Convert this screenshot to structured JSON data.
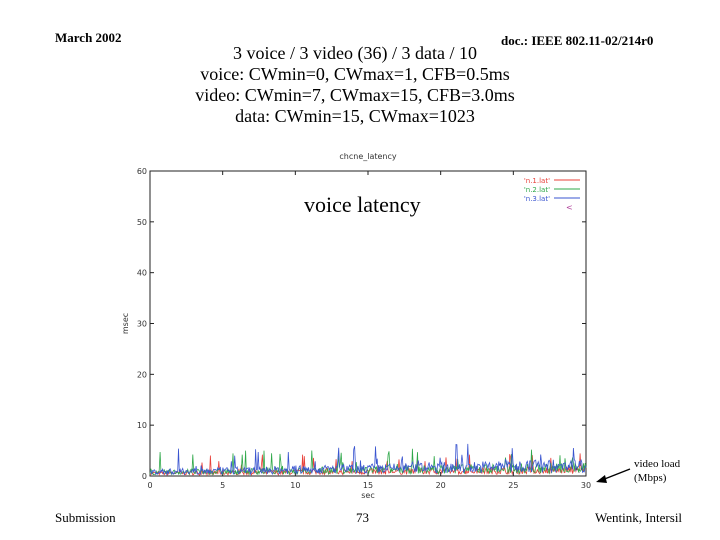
{
  "header": {
    "date": "March 2002",
    "doc": "doc.: IEEE 802.11-02/214r0"
  },
  "title_lines": [
    "3 voice / 3 video (36) / 3 data / 10",
    "voice: CWmin=0, CWmax=1, CFB=0.5ms",
    "video: CWmin=7, CWmax=15, CFB=3.0ms",
    "data: CWmin=15, CWmax=1023"
  ],
  "footer": {
    "left": "Submission",
    "center": "73",
    "right": "Wentink, Intersil"
  },
  "annotations": {
    "chart_label": "voice latency",
    "video_load_line1": "video load",
    "video_load_line2": "(Mbps)"
  },
  "chart_data": {
    "type": "line",
    "title": "chcne_latency",
    "xlabel": "sec",
    "ylabel": "msec",
    "xlim": [
      0,
      30
    ],
    "ylim": [
      0,
      60
    ],
    "xticks": [
      0,
      5,
      10,
      15,
      20,
      25,
      30
    ],
    "yticks": [
      0,
      10,
      20,
      30,
      40,
      50,
      60
    ],
    "legend_position": "top-right",
    "series": [
      {
        "name": "'n.1.lat'",
        "color": "#e8403a",
        "level": [
          0.6,
          1.3
        ],
        "spike_max": 3.5
      },
      {
        "name": "'n.2.lat'",
        "color": "#2fa84a",
        "level": [
          0.8,
          1.8
        ],
        "spike_max": 4.0
      },
      {
        "name": "'n.3.lat'",
        "color": "#3a55d0",
        "level": [
          0.9,
          2.3
        ],
        "spike_max": 4.5
      }
    ],
    "video_load_marker": {
      "x": 30,
      "y": 0,
      "label": "'.'"
    }
  }
}
